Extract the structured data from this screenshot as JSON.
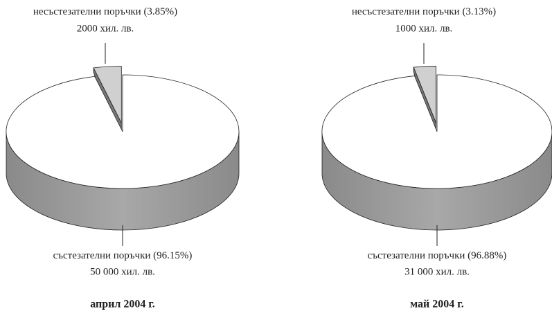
{
  "chart_data": [
    {
      "type": "pie",
      "title": "април 2004 г.",
      "categories": [
        "несъстезателни поръчки",
        "състезателни поръчки"
      ],
      "values": [
        3.85,
        96.15
      ],
      "value_labels": [
        "(3.85%)",
        "(96.15%)"
      ],
      "amounts": [
        2000,
        50000
      ],
      "amount_labels": [
        "2000 хил. лв.",
        "50 000 хил. лв."
      ],
      "colors": [
        "#d0d0d0",
        "#ffffff"
      ],
      "exploded": [
        true,
        false
      ],
      "three_d": true
    },
    {
      "type": "pie",
      "title": "май 2004 г.",
      "categories": [
        "несъстезателни поръчки",
        "състезателни поръчки"
      ],
      "values": [
        3.13,
        96.88
      ],
      "value_labels": [
        "(3.13%)",
        "(96.88%)"
      ],
      "amounts": [
        1000,
        31000
      ],
      "amount_labels": [
        "1000 хил. лв.",
        "31 000 хил. лв."
      ],
      "colors": [
        "#d0d0d0",
        "#ffffff"
      ],
      "exploded": [
        true,
        false
      ],
      "three_d": true
    }
  ]
}
